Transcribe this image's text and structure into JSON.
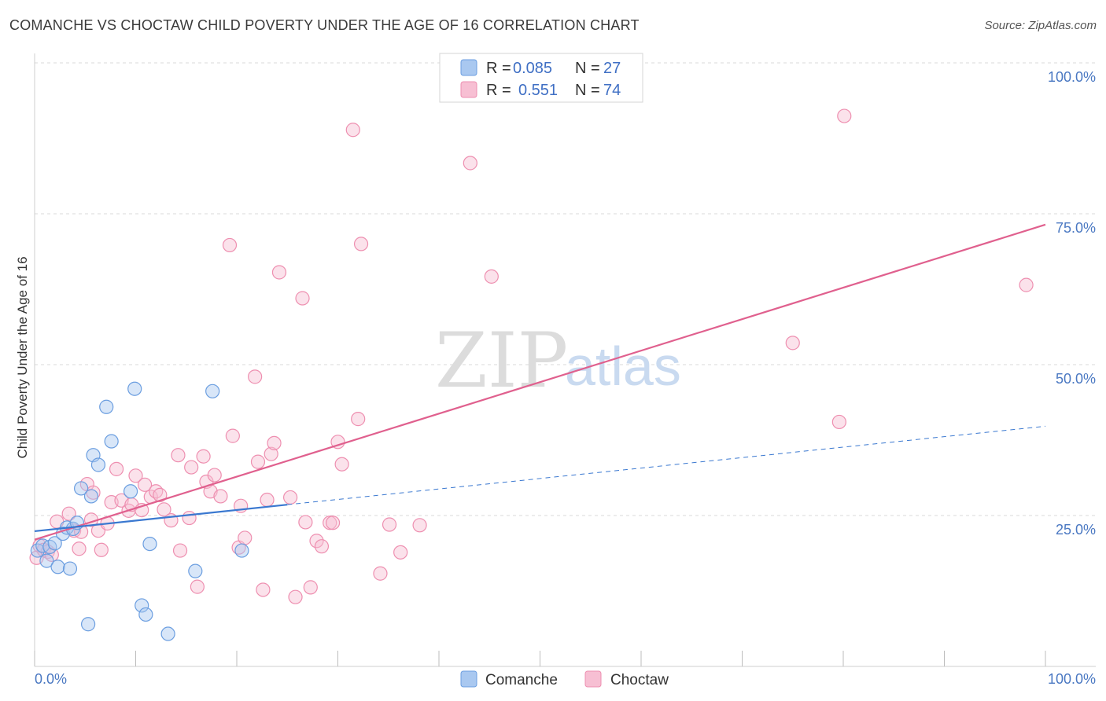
{
  "title": "COMANCHE VS CHOCTAW CHILD POVERTY UNDER THE AGE OF 16 CORRELATION CHART",
  "source": "Source: ZipAtlas.com",
  "watermark": {
    "zip": "ZIP",
    "atlas": "atlas"
  },
  "colors": {
    "comanche_fill": "#a9c8f0",
    "comanche_stroke": "#6b9ee0",
    "comanche_line": "#3a78d0",
    "choctaw_fill": "#f7bfd3",
    "choctaw_stroke": "#ee8fb0",
    "choctaw_line": "#e0608e",
    "grid": "#d8d8d8",
    "tick_text": "#4a78c2"
  },
  "legend": {
    "rows": [
      {
        "r_label": "R =",
        "r_value": "0.085",
        "n_label": "N =",
        "n_value": "27"
      },
      {
        "r_label": "R =",
        "r_value": "0.551",
        "n_label": "N =",
        "n_value": "74"
      }
    ]
  },
  "chart_data": {
    "type": "scatter",
    "title": "COMANCHE VS CHOCTAW CHILD POVERTY UNDER THE AGE OF 16 CORRELATION CHART",
    "xlabel": "",
    "ylabel": "Child Poverty Under the Age of 16",
    "xlim": [
      0,
      100
    ],
    "ylim": [
      0,
      100
    ],
    "x_tick_labels": [
      "0.0%",
      "100.0%"
    ],
    "y_tick_labels": [
      "25.0%",
      "50.0%",
      "75.0%",
      "100.0%"
    ],
    "y_ticks": [
      25,
      50,
      75,
      100
    ],
    "legend_position": "top-center",
    "series": [
      {
        "name": "Comanche",
        "R": 0.085,
        "N": 27,
        "trend": {
          "x0": 0,
          "y0": 22.4,
          "x1": 25,
          "y1": 26.8,
          "dashed_to_x": 100,
          "dashed_to_y": 39.8
        },
        "points": [
          [
            0.3,
            19.2
          ],
          [
            0.8,
            20.0
          ],
          [
            1.2,
            17.5
          ],
          [
            1.5,
            19.8
          ],
          [
            2.0,
            20.4
          ],
          [
            2.3,
            16.5
          ],
          [
            2.8,
            22.0
          ],
          [
            3.2,
            23.0
          ],
          [
            3.5,
            16.2
          ],
          [
            3.8,
            22.8
          ],
          [
            4.2,
            23.8
          ],
          [
            4.6,
            29.5
          ],
          [
            5.3,
            7.0
          ],
          [
            5.6,
            28.2
          ],
          [
            5.8,
            35.0
          ],
          [
            6.3,
            33.4
          ],
          [
            7.1,
            43.0
          ],
          [
            7.6,
            37.3
          ],
          [
            9.5,
            29.0
          ],
          [
            9.9,
            46.0
          ],
          [
            10.6,
            10.1
          ],
          [
            11.0,
            8.6
          ],
          [
            11.4,
            20.3
          ],
          [
            13.2,
            5.4
          ],
          [
            15.9,
            15.8
          ],
          [
            17.6,
            45.6
          ],
          [
            20.5,
            19.2
          ]
        ]
      },
      {
        "name": "Choctaw",
        "R": 0.551,
        "N": 74,
        "trend": {
          "x0": 0,
          "y0": 21.0,
          "x1": 100,
          "y1": 73.2
        },
        "points": [
          [
            0.2,
            18.0
          ],
          [
            0.5,
            20.0
          ],
          [
            0.9,
            19.3
          ],
          [
            1.3,
            19.0
          ],
          [
            1.7,
            18.5
          ],
          [
            2.2,
            24.0
          ],
          [
            3.4,
            25.3
          ],
          [
            3.9,
            22.5
          ],
          [
            4.4,
            19.5
          ],
          [
            4.6,
            22.3
          ],
          [
            5.2,
            30.2
          ],
          [
            5.6,
            24.3
          ],
          [
            5.8,
            28.8
          ],
          [
            6.3,
            22.5
          ],
          [
            6.6,
            19.3
          ],
          [
            7.2,
            23.7
          ],
          [
            7.6,
            27.2
          ],
          [
            8.1,
            32.7
          ],
          [
            8.6,
            27.5
          ],
          [
            9.3,
            25.8
          ],
          [
            9.6,
            26.8
          ],
          [
            10.0,
            31.6
          ],
          [
            10.6,
            25.9
          ],
          [
            10.9,
            30.1
          ],
          [
            11.5,
            28.1
          ],
          [
            12.0,
            29.0
          ],
          [
            12.4,
            28.4
          ],
          [
            12.8,
            26.0
          ],
          [
            13.5,
            24.2
          ],
          [
            14.2,
            35.0
          ],
          [
            14.4,
            19.2
          ],
          [
            15.3,
            24.6
          ],
          [
            15.5,
            33.0
          ],
          [
            16.1,
            13.2
          ],
          [
            16.7,
            34.8
          ],
          [
            17.0,
            30.6
          ],
          [
            17.4,
            29.0
          ],
          [
            17.8,
            31.7
          ],
          [
            18.4,
            28.2
          ],
          [
            19.3,
            69.8
          ],
          [
            19.6,
            38.2
          ],
          [
            20.2,
            19.7
          ],
          [
            20.4,
            26.6
          ],
          [
            20.8,
            21.3
          ],
          [
            21.8,
            48.0
          ],
          [
            22.1,
            33.9
          ],
          [
            22.6,
            12.7
          ],
          [
            23.0,
            27.6
          ],
          [
            23.4,
            35.2
          ],
          [
            23.7,
            37.0
          ],
          [
            24.2,
            65.3
          ],
          [
            25.3,
            28.0
          ],
          [
            25.8,
            11.5
          ],
          [
            26.5,
            61.0
          ],
          [
            26.8,
            23.9
          ],
          [
            27.3,
            13.1
          ],
          [
            27.9,
            20.8
          ],
          [
            28.4,
            19.9
          ],
          [
            29.2,
            23.8
          ],
          [
            29.5,
            23.8
          ],
          [
            30.0,
            37.2
          ],
          [
            30.4,
            33.5
          ],
          [
            31.5,
            88.9
          ],
          [
            32.0,
            41.0
          ],
          [
            32.3,
            70.0
          ],
          [
            34.2,
            15.4
          ],
          [
            35.1,
            23.5
          ],
          [
            36.2,
            18.9
          ],
          [
            38.1,
            23.4
          ],
          [
            43.1,
            83.4
          ],
          [
            45.2,
            64.6
          ],
          [
            75.0,
            53.6
          ],
          [
            79.6,
            40.5
          ],
          [
            80.1,
            91.2
          ],
          [
            98.1,
            63.2
          ]
        ]
      }
    ]
  },
  "bottom_legend": {
    "items": [
      "Comanche",
      "Choctaw"
    ]
  }
}
